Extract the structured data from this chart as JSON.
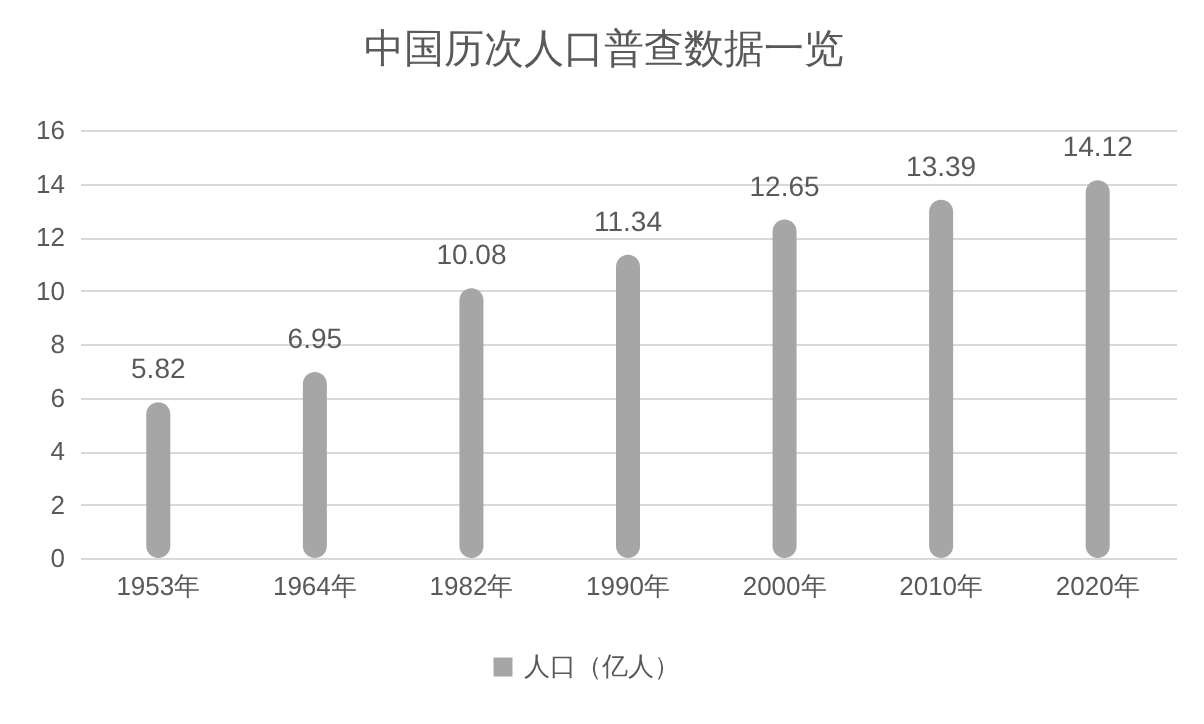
{
  "chart_data": {
    "type": "bar",
    "title": "中国历次人口普查数据一览",
    "categories": [
      "1953年",
      "1964年",
      "1982年",
      "1990年",
      "2000年",
      "2010年",
      "2020年"
    ],
    "series": [
      {
        "name": "人口（亿人）",
        "color": "#a6a6a6",
        "values": [
          5.82,
          6.95,
          10.08,
          11.34,
          12.65,
          13.39,
          14.12
        ]
      }
    ],
    "ylim": [
      0,
      16
    ],
    "yticks": [
      0,
      2,
      4,
      6,
      8,
      10,
      12,
      14,
      16
    ],
    "grid": "y",
    "legend": "bottom",
    "data_labels": true
  }
}
